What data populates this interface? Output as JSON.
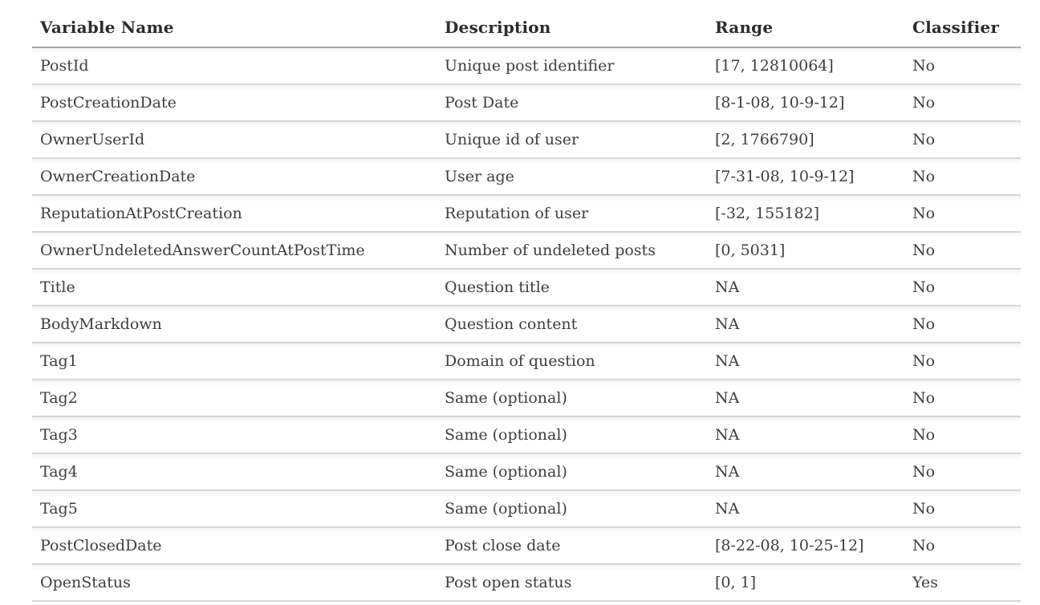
{
  "table": {
    "headers": [
      "Variable Name",
      "Description",
      "Range",
      "Classifier"
    ],
    "rows": [
      {
        "variable": "PostId",
        "description": "Unique post identifier",
        "range": "[17, 12810064]",
        "classifier": "No"
      },
      {
        "variable": "PostCreationDate",
        "description": "Post Date",
        "range": "[8-1-08, 10-9-12]",
        "classifier": "No"
      },
      {
        "variable": "OwnerUserId",
        "description": "Unique id of user",
        "range": "[2, 1766790]",
        "classifier": "No"
      },
      {
        "variable": "OwnerCreationDate",
        "description": "User age",
        "range": "[7-31-08, 10-9-12]",
        "classifier": "No"
      },
      {
        "variable": "ReputationAtPostCreation",
        "description": "Reputation of user",
        "range": "[-32, 155182]",
        "classifier": "No"
      },
      {
        "variable": "OwnerUndeletedAnswerCountAtPostTime",
        "description": "Number of undeleted posts",
        "range": "[0, 5031]",
        "classifier": "No"
      },
      {
        "variable": "Title",
        "description": "Question title",
        "range": "NA",
        "classifier": "No"
      },
      {
        "variable": "BodyMarkdown",
        "description": "Question content",
        "range": "NA",
        "classifier": "No"
      },
      {
        "variable": "Tag1",
        "description": "Domain of question",
        "range": "NA",
        "classifier": "No"
      },
      {
        "variable": "Tag2",
        "description": "Same (optional)",
        "range": "NA",
        "classifier": "No"
      },
      {
        "variable": "Tag3",
        "description": "Same (optional)",
        "range": "NA",
        "classifier": "No"
      },
      {
        "variable": "Tag4",
        "description": "Same (optional)",
        "range": "NA",
        "classifier": "No"
      },
      {
        "variable": "Tag5",
        "description": "Same (optional)",
        "range": "NA",
        "classifier": "No"
      },
      {
        "variable": "PostClosedDate",
        "description": "Post close date",
        "range": "[8-22-08, 10-25-12]",
        "classifier": "No"
      },
      {
        "variable": "OpenStatus",
        "description": "Post open status",
        "range": "[0, 1]",
        "classifier": "Yes"
      }
    ],
    "colors": {
      "body_text": "#3d3c42",
      "header_text": "#2b2b30",
      "header_border": "#a9a9a9",
      "row_border": "#d6d6d6",
      "background": "#ffffff"
    }
  }
}
